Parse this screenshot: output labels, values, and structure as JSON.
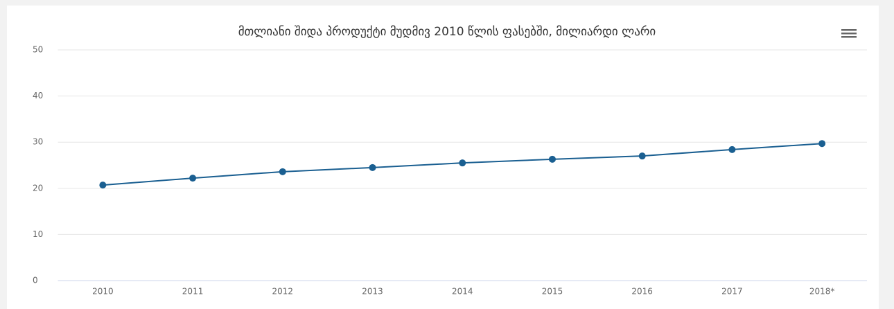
{
  "chart_data": {
    "type": "line",
    "title": "მთლიანი შიდა პროდუქტი მუდმივ 2010 წლის ფასებში, მილიარდი ლარი",
    "categories": [
      "2010",
      "2011",
      "2012",
      "2013",
      "2014",
      "2015",
      "2016",
      "2017",
      "2018*"
    ],
    "series": [
      {
        "color": "#1a5f91",
        "values": [
          20.7,
          22.2,
          23.6,
          24.5,
          25.5,
          26.3,
          27.0,
          28.4,
          29.7
        ]
      }
    ],
    "ylim": [
      0,
      50
    ],
    "yticks": [
      0,
      10,
      20,
      30,
      40,
      50
    ],
    "grid": true
  }
}
